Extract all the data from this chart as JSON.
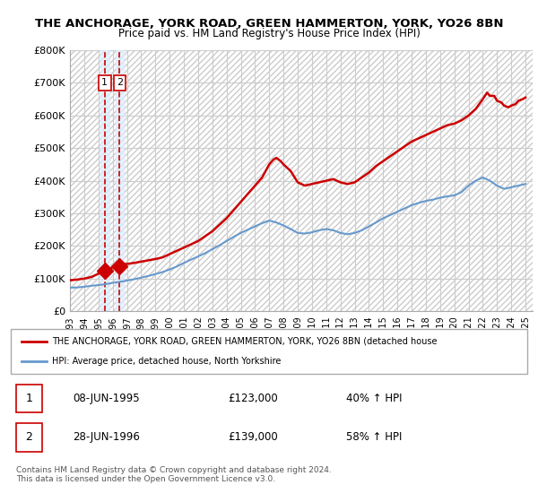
{
  "title_line1": "THE ANCHORAGE, YORK ROAD, GREEN HAMMERTON, YORK, YO26 8BN",
  "title_line2": "Price paid vs. HM Land Registry's House Price Index (HPI)",
  "ylabel": "",
  "background_color": "#ffffff",
  "plot_bg_color": "#ffffff",
  "hatch_color": "#dddddd",
  "grid_color": "#cccccc",
  "red_line_color": "#cc0000",
  "blue_line_color": "#6699cc",
  "sale_marker_color": "#cc0000",
  "dashed_line_color": "#cc0000",
  "shade_color": "#ddeeff",
  "ylim": [
    0,
    800000
  ],
  "yticks": [
    0,
    100000,
    200000,
    300000,
    400000,
    500000,
    600000,
    700000,
    800000
  ],
  "ytick_labels": [
    "£0",
    "£100K",
    "£200K",
    "£300K",
    "£400K",
    "£500K",
    "£600K",
    "£700K",
    "£800K"
  ],
  "xlim_start": 1993.0,
  "xlim_end": 2025.5,
  "xtick_years": [
    1993,
    1994,
    1995,
    1996,
    1997,
    1998,
    1999,
    2000,
    2001,
    2002,
    2003,
    2004,
    2005,
    2006,
    2007,
    2008,
    2009,
    2010,
    2011,
    2012,
    2013,
    2014,
    2015,
    2016,
    2017,
    2018,
    2019,
    2020,
    2021,
    2022,
    2023,
    2024,
    2025
  ],
  "sale1_x": 1995.44,
  "sale1_y": 123000,
  "sale2_x": 1996.49,
  "sale2_y": 139000,
  "sale1_label": "1",
  "sale2_label": "2",
  "legend_red_label": "THE ANCHORAGE, YORK ROAD, GREEN HAMMERTON, YORK, YO26 8BN (detached house",
  "legend_blue_label": "HPI: Average price, detached house, North Yorkshire",
  "table_row1": [
    "1",
    "08-JUN-1995",
    "£123,000",
    "40% ↑ HPI"
  ],
  "table_row2": [
    "2",
    "28-JUN-1996",
    "£139,000",
    "58% ↑ HPI"
  ],
  "footer": "Contains HM Land Registry data © Crown copyright and database right 2024.\nThis data is licensed under the Open Government Licence v3.0.",
  "red_line_x": [
    1993.0,
    1993.5,
    1994.0,
    1994.5,
    1995.0,
    1995.44,
    1995.5,
    1995.6,
    1995.7,
    1995.8,
    1996.0,
    1996.49,
    1996.5,
    1996.6,
    1997.0,
    1997.5,
    1998.0,
    1998.5,
    1999.0,
    1999.5,
    2000.0,
    2000.5,
    2001.0,
    2001.5,
    2002.0,
    2002.5,
    2003.0,
    2003.5,
    2004.0,
    2004.5,
    2005.0,
    2005.5,
    2006.0,
    2006.5,
    2007.0,
    2007.3,
    2007.5,
    2007.8,
    2008.0,
    2008.5,
    2009.0,
    2009.5,
    2010.0,
    2010.5,
    2011.0,
    2011.5,
    2012.0,
    2012.5,
    2013.0,
    2013.5,
    2014.0,
    2014.5,
    2015.0,
    2015.5,
    2016.0,
    2016.5,
    2017.0,
    2017.5,
    2018.0,
    2018.5,
    2019.0,
    2019.5,
    2020.0,
    2020.5,
    2021.0,
    2021.5,
    2022.0,
    2022.3,
    2022.5,
    2022.8,
    2023.0,
    2023.3,
    2023.5,
    2023.8,
    2024.0,
    2024.3,
    2024.5,
    2024.8,
    2025.0
  ],
  "red_line_y": [
    95000,
    97000,
    100000,
    105000,
    115000,
    123000,
    124000,
    126000,
    128000,
    130000,
    135000,
    139000,
    140000,
    142000,
    145000,
    148000,
    152000,
    156000,
    160000,
    165000,
    175000,
    185000,
    195000,
    205000,
    215000,
    230000,
    245000,
    265000,
    285000,
    310000,
    335000,
    360000,
    385000,
    410000,
    450000,
    465000,
    470000,
    460000,
    450000,
    430000,
    395000,
    385000,
    390000,
    395000,
    400000,
    405000,
    395000,
    390000,
    395000,
    410000,
    425000,
    445000,
    460000,
    475000,
    490000,
    505000,
    520000,
    530000,
    540000,
    550000,
    560000,
    570000,
    575000,
    585000,
    600000,
    620000,
    650000,
    670000,
    660000,
    660000,
    645000,
    640000,
    630000,
    625000,
    630000,
    635000,
    645000,
    650000,
    655000
  ],
  "blue_line_x": [
    1993.0,
    1993.5,
    1994.0,
    1994.5,
    1995.0,
    1995.5,
    1996.0,
    1996.5,
    1997.0,
    1997.5,
    1998.0,
    1998.5,
    1999.0,
    1999.5,
    2000.0,
    2000.5,
    2001.0,
    2001.5,
    2002.0,
    2002.5,
    2003.0,
    2003.5,
    2004.0,
    2004.5,
    2005.0,
    2005.5,
    2006.0,
    2006.5,
    2007.0,
    2007.5,
    2008.0,
    2008.5,
    2009.0,
    2009.5,
    2010.0,
    2010.5,
    2011.0,
    2011.5,
    2012.0,
    2012.5,
    2013.0,
    2013.5,
    2014.0,
    2014.5,
    2015.0,
    2015.5,
    2016.0,
    2016.5,
    2017.0,
    2017.5,
    2018.0,
    2018.5,
    2019.0,
    2019.5,
    2020.0,
    2020.5,
    2021.0,
    2021.5,
    2022.0,
    2022.5,
    2023.0,
    2023.5,
    2024.0,
    2024.5,
    2025.0
  ],
  "blue_line_y": [
    72000,
    73000,
    75000,
    78000,
    80000,
    83000,
    87000,
    90000,
    94000,
    98000,
    103000,
    108000,
    114000,
    120000,
    128000,
    137000,
    148000,
    158000,
    168000,
    178000,
    190000,
    202000,
    215000,
    228000,
    240000,
    250000,
    260000,
    270000,
    278000,
    272000,
    263000,
    252000,
    240000,
    238000,
    242000,
    248000,
    252000,
    248000,
    240000,
    236000,
    240000,
    248000,
    260000,
    272000,
    285000,
    295000,
    305000,
    315000,
    325000,
    332000,
    338000,
    342000,
    348000,
    352000,
    355000,
    365000,
    385000,
    400000,
    410000,
    400000,
    385000,
    375000,
    380000,
    385000,
    390000
  ]
}
